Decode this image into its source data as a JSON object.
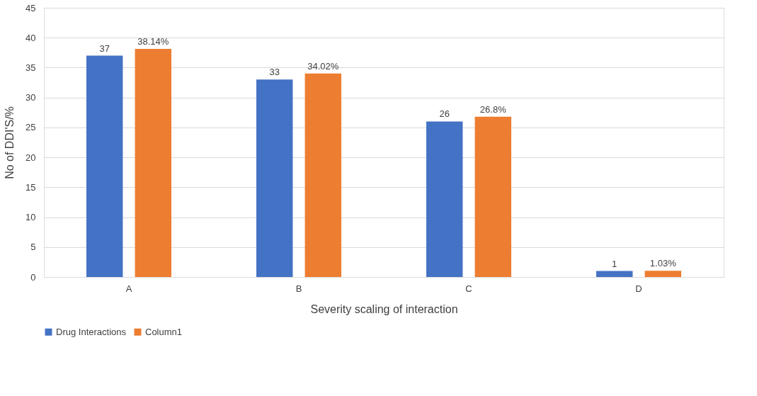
{
  "chart_data": {
    "type": "bar",
    "xlabel": "Severity scaling of interaction",
    "ylabel": "No of DDI'S/%",
    "categories": [
      "A",
      "B",
      "C",
      "D"
    ],
    "series": [
      {
        "name": "Drug Interactions",
        "color": "#4472c4",
        "values": [
          37,
          33,
          26,
          1
        ],
        "value_labels": [
          "37",
          "33",
          "26",
          "1"
        ]
      },
      {
        "name": "Column1",
        "color": "#ed7d31",
        "values": [
          38.14,
          34.02,
          26.8,
          1.03
        ],
        "value_labels": [
          "38.14%",
          "34.02%",
          "26.8%",
          "1.03%"
        ]
      }
    ],
    "ylim": [
      0,
      45
    ],
    "yticks": [
      0,
      5,
      10,
      15,
      20,
      25,
      30,
      35,
      40,
      45
    ],
    "grid": "y",
    "legend": "bottom"
  }
}
